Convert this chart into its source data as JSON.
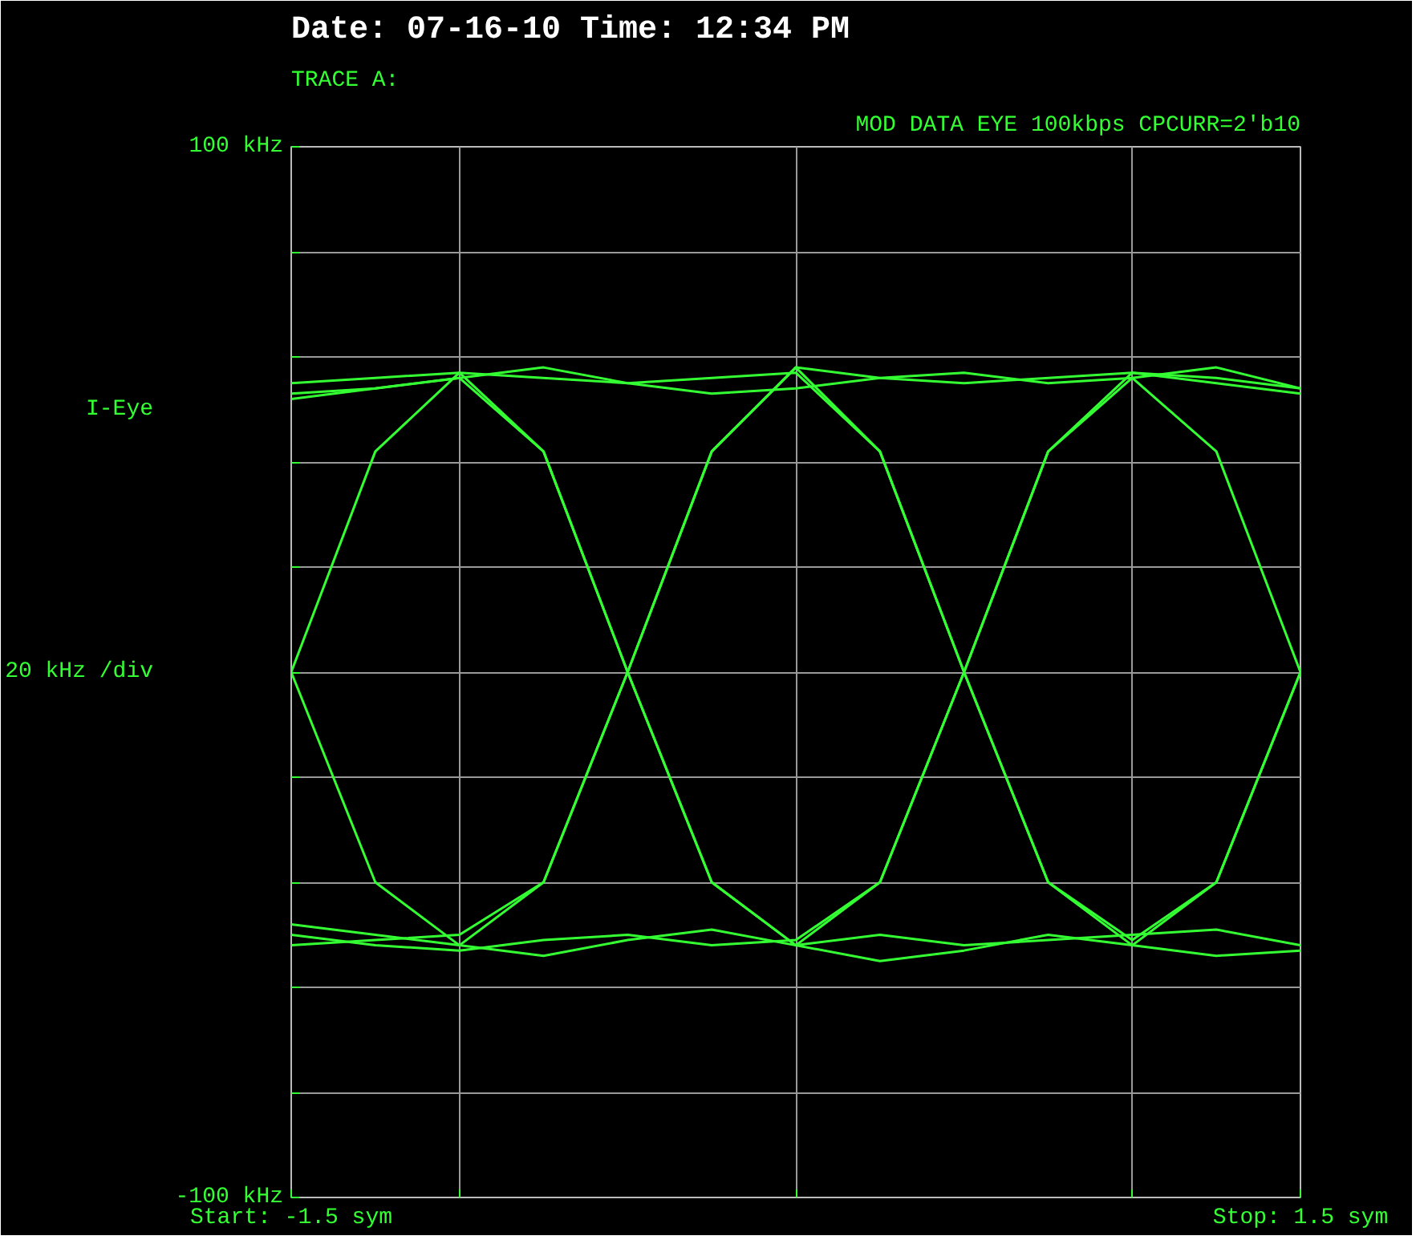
{
  "chart_data": {
    "type": "line",
    "title": "Date: 07-16-10   Time: 12:34 PM",
    "annotations": [
      "TRACE A:",
      "MOD DATA EYE 100kbps CPCURR=2'b10",
      "I-Eye",
      "20 kHz /div"
    ],
    "x": [
      -1.5,
      -1.25,
      -1,
      -0.75,
      -0.5,
      -0.25,
      0,
      0.25,
      0.5,
      0.75,
      1,
      1.25,
      1.5
    ],
    "xlim": [
      -1.5,
      1.5
    ],
    "ylim": [
      -100,
      100
    ],
    "xticks": [
      {
        "value": -1.5,
        "label": "Start: -1.5 sym"
      },
      {
        "value": -1,
        "label": null
      },
      {
        "value": 0,
        "label": null
      },
      {
        "value": 1,
        "label": null
      },
      {
        "value": 1.5,
        "label": "Stop: 1.5 sym"
      }
    ],
    "yticks": [
      {
        "value": 100,
        "label": "100 kHz"
      },
      {
        "value": 80,
        "label": null
      },
      {
        "value": 60,
        "label": null
      },
      {
        "value": 40,
        "label": null
      },
      {
        "value": 20,
        "label": null
      },
      {
        "value": 0,
        "label": null
      },
      {
        "value": -20,
        "label": null
      },
      {
        "value": -40,
        "label": null
      },
      {
        "value": -60,
        "label": null
      },
      {
        "value": -80,
        "label": null
      },
      {
        "value": -100,
        "label": "-100 kHz"
      }
    ],
    "grid": true,
    "line_style": "solid",
    "marker": "none",
    "series": [
      {
        "color": "#33ff33",
        "values": [
          0,
          42,
          57,
          42,
          0,
          -40,
          -52,
          -40,
          0,
          42,
          56,
          42,
          0
        ]
      },
      {
        "color": "#33ff33",
        "values": [
          0,
          -40,
          -52,
          -40,
          0,
          42,
          58,
          42,
          0,
          -40,
          -51,
          -40,
          0
        ]
      },
      {
        "color": "#33ff33",
        "values": [
          55,
          56,
          57,
          56,
          55,
          56,
          57,
          42,
          0,
          -40,
          -52,
          -40,
          0
        ]
      },
      {
        "color": "#33ff33",
        "values": [
          -50,
          -52,
          -53,
          -51,
          -50,
          -52,
          -51,
          -40,
          0,
          42,
          57,
          55,
          53
        ]
      },
      {
        "color": "#33ff33",
        "values": [
          53,
          54,
          56,
          42,
          0,
          -40,
          -52,
          -50,
          -52,
          -51,
          -50,
          -49,
          -52
        ]
      },
      {
        "color": "#33ff33",
        "values": [
          -52,
          -51,
          -50,
          -40,
          0,
          42,
          58,
          56,
          55,
          56,
          57,
          56,
          54
        ]
      },
      {
        "color": "#33ff33",
        "values": [
          52,
          54,
          56,
          58,
          55,
          53,
          54,
          56,
          57,
          55,
          56,
          58,
          54
        ]
      },
      {
        "color": "#33ff33",
        "values": [
          -48,
          -50,
          -52,
          -54,
          -51,
          -49,
          -52,
          -55,
          -53,
          -50,
          -52,
          -54,
          -53
        ]
      }
    ]
  }
}
